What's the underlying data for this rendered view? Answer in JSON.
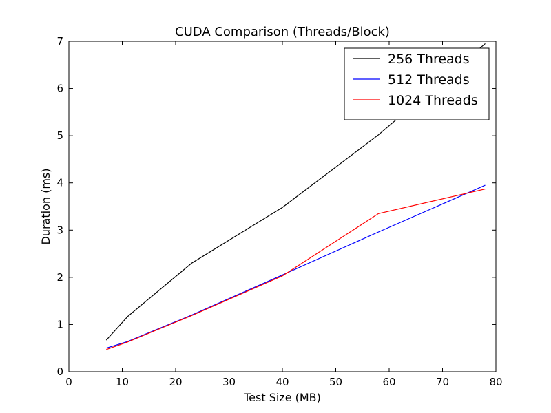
{
  "chart_data": {
    "type": "line",
    "title": "CUDA Comparison (Threads/Block)",
    "xlabel": "Test Size (MB)",
    "ylabel": "Duration (ms)",
    "xlim": [
      0,
      80
    ],
    "ylim": [
      0,
      7
    ],
    "xticks": [
      0,
      10,
      20,
      30,
      40,
      50,
      60,
      70,
      80
    ],
    "yticks": [
      0,
      1,
      2,
      3,
      4,
      5,
      6,
      7
    ],
    "grid": false,
    "legend_position": "top-right",
    "series": [
      {
        "name": "256 Threads",
        "color": "#000000",
        "x": [
          7,
          11,
          23,
          40,
          58,
          78
        ],
        "y": [
          0.67,
          1.17,
          2.3,
          3.48,
          5.02,
          6.95
        ]
      },
      {
        "name": "512 Threads",
        "color": "#0000ff",
        "x": [
          7,
          11,
          23,
          40,
          58,
          78
        ],
        "y": [
          0.5,
          0.64,
          1.2,
          2.05,
          2.96,
          3.95
        ]
      },
      {
        "name": "1024 Threads",
        "color": "#ff0000",
        "x": [
          7,
          11,
          23,
          40,
          58,
          78
        ],
        "y": [
          0.47,
          0.63,
          1.19,
          2.03,
          3.35,
          3.87
        ]
      }
    ]
  }
}
